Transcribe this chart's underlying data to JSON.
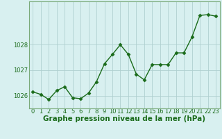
{
  "x": [
    0,
    1,
    2,
    3,
    4,
    5,
    6,
    7,
    8,
    9,
    10,
    11,
    12,
    13,
    14,
    15,
    16,
    17,
    18,
    19,
    20,
    21,
    22,
    23
  ],
  "y": [
    1026.15,
    1026.05,
    1025.85,
    1026.2,
    1026.35,
    1025.92,
    1025.88,
    1026.1,
    1026.55,
    1027.25,
    1027.62,
    1028.0,
    1027.62,
    1026.85,
    1026.62,
    1027.22,
    1027.22,
    1027.22,
    1027.68,
    1027.68,
    1028.3,
    1029.15,
    1029.18,
    1029.12
  ],
  "line_color": "#1a6b1a",
  "marker": "D",
  "marker_size": 2.5,
  "marker_color": "#1a6b1a",
  "bg_color": "#d8f0f0",
  "grid_color": "#b0d0d0",
  "tick_color": "#1a6b1a",
  "label_color": "#1a6b1a",
  "xlabel": "Graphe pression niveau de la mer (hPa)",
  "ylim": [
    1025.5,
    1029.7
  ],
  "yticks": [
    1026,
    1027,
    1028
  ],
  "xticks": [
    0,
    1,
    2,
    3,
    4,
    5,
    6,
    7,
    8,
    9,
    10,
    11,
    12,
    13,
    14,
    15,
    16,
    17,
    18,
    19,
    20,
    21,
    22,
    23
  ],
  "xlabel_fontsize": 7.5,
  "tick_fontsize": 6.0,
  "line_width": 1.0,
  "spine_color": "#7aaa7a"
}
